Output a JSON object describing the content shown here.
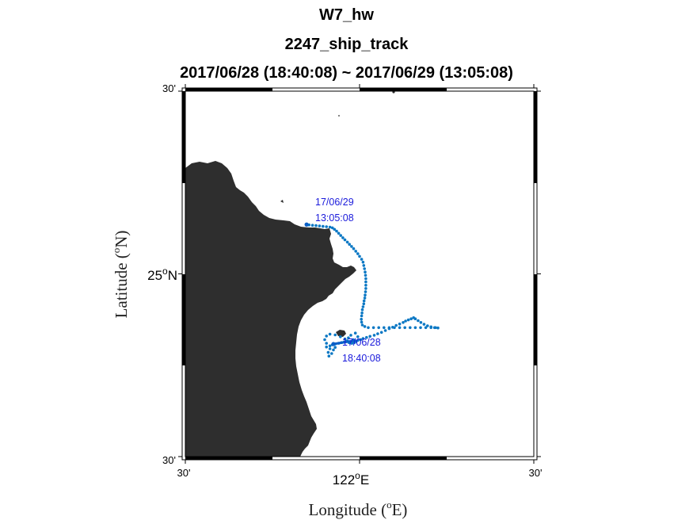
{
  "titles": {
    "line1": "W7_hw",
    "line2": "2247_ship_track",
    "line3": "2017/06/28 (18:40:08) ~ 2017/06/29 (13:05:08)"
  },
  "axes": {
    "xlabel": "Longitude ( E)",
    "xlabel_prefix": "Longitude (",
    "xlabel_suffix": "E)",
    "ylabel": "Latitude ( N)",
    "ylabel_prefix": "Latitude (",
    "ylabel_suffix": "N)",
    "degree_symbol": "o",
    "x_ticks": [
      {
        "label": "30'",
        "lon": 121.5
      },
      {
        "label": "122",
        "suffix": "E",
        "lon": 122.0,
        "major": true
      },
      {
        "label": "30'",
        "lon": 122.5
      }
    ],
    "y_ticks": [
      {
        "label": "30'",
        "lat": 25.5
      },
      {
        "label": "25",
        "suffix": "N",
        "lat": 25.0,
        "major": true
      },
      {
        "label": "30'",
        "lat": 24.5
      }
    ]
  },
  "annotations": {
    "end_date": "17/06/29",
    "end_time": "13:05:08",
    "start_date": "17/06/28",
    "start_time": "18:40:08",
    "color": "#1a1adb"
  },
  "colors": {
    "land": "#2e2e2e",
    "track": "#0b78c4",
    "track_dense": "#0a5fc7",
    "frame": "#000000"
  },
  "chart_data": {
    "type": "scatter",
    "projection": "mercator-like",
    "xlim": [
      121.5,
      122.5
    ],
    "ylim": [
      24.5,
      25.5
    ],
    "track_points": [
      [
        121.915,
        24.803
      ],
      [
        121.922,
        24.806
      ],
      [
        121.93,
        24.808
      ],
      [
        121.94,
        24.81
      ],
      [
        121.948,
        24.812
      ],
      [
        121.955,
        24.813
      ],
      [
        121.962,
        24.815
      ],
      [
        121.97,
        24.812
      ],
      [
        121.978,
        24.81
      ],
      [
        121.985,
        24.812
      ],
      [
        121.99,
        24.815
      ],
      [
        121.995,
        24.818
      ],
      [
        122.003,
        24.82
      ],
      [
        122.01,
        24.823
      ],
      [
        122.02,
        24.826
      ],
      [
        122.03,
        24.829
      ],
      [
        122.042,
        24.832
      ],
      [
        122.052,
        24.836
      ],
      [
        122.063,
        24.84
      ],
      [
        122.074,
        24.845
      ],
      [
        122.085,
        24.85
      ],
      [
        122.095,
        24.854
      ],
      [
        122.105,
        24.859
      ],
      [
        122.115,
        24.863
      ],
      [
        122.125,
        24.867
      ],
      [
        122.132,
        24.871
      ],
      [
        122.14,
        24.874
      ],
      [
        122.148,
        24.877
      ],
      [
        122.155,
        24.88
      ],
      [
        122.16,
        24.877
      ],
      [
        122.168,
        24.872
      ],
      [
        122.176,
        24.867
      ],
      [
        122.185,
        24.862
      ],
      [
        122.195,
        24.858
      ],
      [
        122.205,
        24.855
      ],
      [
        122.215,
        24.853
      ],
      [
        122.225,
        24.852
      ],
      [
        122.218,
        24.853
      ],
      [
        122.205,
        24.853
      ],
      [
        122.19,
        24.853
      ],
      [
        122.175,
        24.853
      ],
      [
        122.16,
        24.853
      ],
      [
        122.145,
        24.853
      ],
      [
        122.13,
        24.853
      ],
      [
        122.115,
        24.853
      ],
      [
        122.1,
        24.853
      ],
      [
        122.085,
        24.853
      ],
      [
        122.07,
        24.853
      ],
      [
        122.055,
        24.853
      ],
      [
        122.04,
        24.853
      ],
      [
        122.025,
        24.853
      ],
      [
        122.015,
        24.856
      ],
      [
        122.008,
        24.86
      ],
      [
        122.006,
        24.868
      ],
      [
        122.005,
        24.876
      ],
      [
        122.006,
        24.885
      ],
      [
        122.007,
        24.893
      ],
      [
        122.008,
        24.902
      ],
      [
        122.01,
        24.91
      ],
      [
        122.012,
        24.918
      ],
      [
        122.013,
        24.926
      ],
      [
        122.015,
        24.934
      ],
      [
        122.016,
        24.942
      ],
      [
        122.017,
        24.951
      ],
      [
        122.018,
        24.96
      ],
      [
        122.018,
        24.969
      ],
      [
        122.018,
        24.978
      ],
      [
        122.018,
        24.987
      ],
      [
        122.017,
        24.996
      ],
      [
        122.016,
        25.005
      ],
      [
        122.014,
        25.014
      ],
      [
        122.012,
        25.023
      ],
      [
        122.01,
        25.032
      ],
      [
        122.006,
        25.04
      ],
      [
        122.0,
        25.048
      ],
      [
        121.995,
        25.055
      ],
      [
        121.989,
        25.062
      ],
      [
        121.983,
        25.069
      ],
      [
        121.977,
        25.075
      ],
      [
        121.971,
        25.081
      ],
      [
        121.965,
        25.087
      ],
      [
        121.958,
        25.093
      ],
      [
        121.952,
        25.099
      ],
      [
        121.946,
        25.105
      ],
      [
        121.94,
        25.111
      ],
      [
        121.934,
        25.117
      ],
      [
        121.928,
        25.122
      ],
      [
        121.922,
        25.126
      ],
      [
        121.915,
        25.128
      ],
      [
        121.905,
        25.129
      ],
      [
        121.895,
        25.13
      ],
      [
        121.885,
        25.131
      ],
      [
        121.875,
        25.132
      ],
      [
        121.865,
        25.133
      ],
      [
        121.855,
        25.134
      ],
      [
        121.848,
        25.135
      ],
      [
        121.925,
        24.792
      ],
      [
        121.93,
        24.799
      ],
      [
        121.905,
        24.81
      ],
      [
        121.9,
        24.82
      ],
      [
        121.905,
        24.83
      ],
      [
        121.915,
        24.835
      ],
      [
        121.93,
        24.833
      ],
      [
        121.945,
        24.828
      ],
      [
        121.958,
        24.822
      ],
      [
        121.905,
        24.8
      ],
      [
        121.915,
        24.795
      ],
      [
        121.91,
        24.785
      ],
      [
        121.912,
        24.775
      ],
      [
        121.92,
        24.782
      ],
      [
        121.965,
        24.817
      ],
      [
        121.982,
        24.82
      ],
      [
        121.968,
        24.825
      ],
      [
        121.975,
        24.832
      ],
      [
        121.988,
        24.838
      ],
      [
        121.995,
        24.828
      ]
    ],
    "start": {
      "lon": 121.925,
      "lat": 24.808
    },
    "end": {
      "lon": 121.848,
      "lat": 25.135
    }
  }
}
